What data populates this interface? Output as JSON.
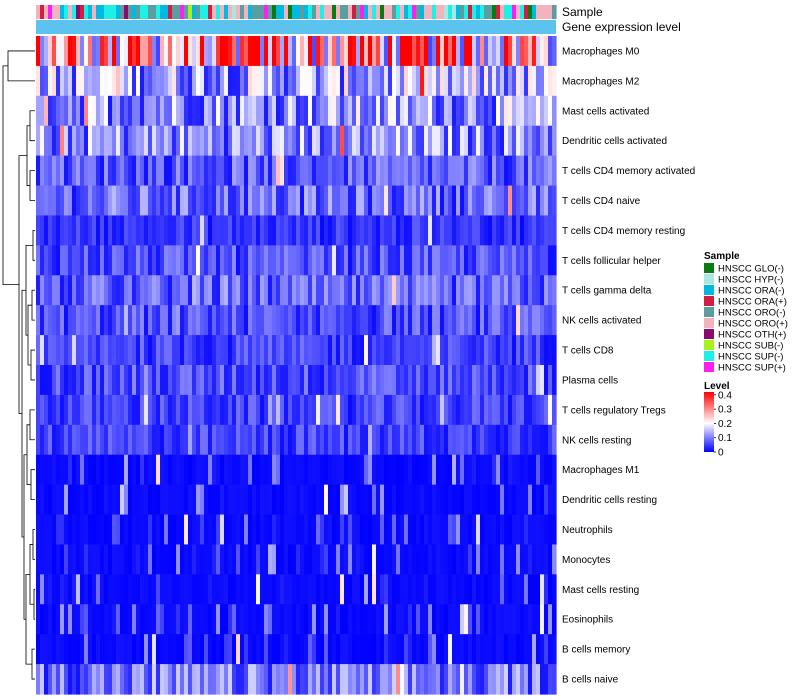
{
  "chart_data": {
    "type": "heatmap",
    "title": "",
    "annotation_tracks": [
      "Sample",
      "Gene expression level"
    ],
    "rows": [
      "Macrophages M0",
      "Macrophages M2",
      "Mast cells activated",
      "Dendritic cells activated",
      "T cells CD4 memory activated",
      "T cells CD4 naive",
      "T cells CD4 memory resting",
      "T cells follicular helper",
      "T cells gamma delta",
      "NK cells activated",
      "T cells CD8",
      "Plasma cells",
      "T cells regulatory  Tregs",
      "NK cells resting",
      "Macrophages M1",
      "Dendritic cells resting",
      "Neutrophils",
      "Monocytes",
      "Mast cells resting",
      "Eosinophils",
      "B cells memory",
      "B cells naive"
    ],
    "row_mean_level": [
      0.27,
      0.13,
      0.12,
      0.11,
      0.07,
      0.08,
      0.04,
      0.06,
      0.07,
      0.06,
      0.05,
      0.06,
      0.05,
      0.05,
      0.03,
      0.03,
      0.025,
      0.02,
      0.025,
      0.015,
      0.02,
      0.09
    ],
    "n_samples": 130,
    "legend": {
      "sample_title": "Sample",
      "samples": [
        {
          "label": "HNSCC GLO(-)",
          "color": "#0c7a12"
        },
        {
          "label": "HNSCC HYP(-)",
          "color": "#a9e7e0"
        },
        {
          "label": "HNSCC ORA(-)",
          "color": "#00b9e3"
        },
        {
          "label": "HNSCC ORA(+)",
          "color": "#d21f41"
        },
        {
          "label": "HNSCC ORO(-)",
          "color": "#5c9ea0"
        },
        {
          "label": "HNSCC ORO(+)",
          "color": "#f2b3bf"
        },
        {
          "label": "HNSCC OTH(+)",
          "color": "#8b0a6d"
        },
        {
          "label": "HNSCC SUB(-)",
          "color": "#a6f21a"
        },
        {
          "label": "HNSCC SUP(-)",
          "color": "#1df0e6"
        },
        {
          "label": "HNSCC SUP(+)",
          "color": "#ff1ef0"
        }
      ],
      "level_title": "Level",
      "level_ticks": [
        "0.4",
        "0.3",
        "0.2",
        "0.1",
        "0"
      ],
      "level_range": [
        0,
        0.42
      ],
      "level_colors": {
        "low": "#0000ff",
        "mid": "#ffffff",
        "high": "#ff0000"
      },
      "gene_expression_color": "#5bc3ee"
    }
  }
}
